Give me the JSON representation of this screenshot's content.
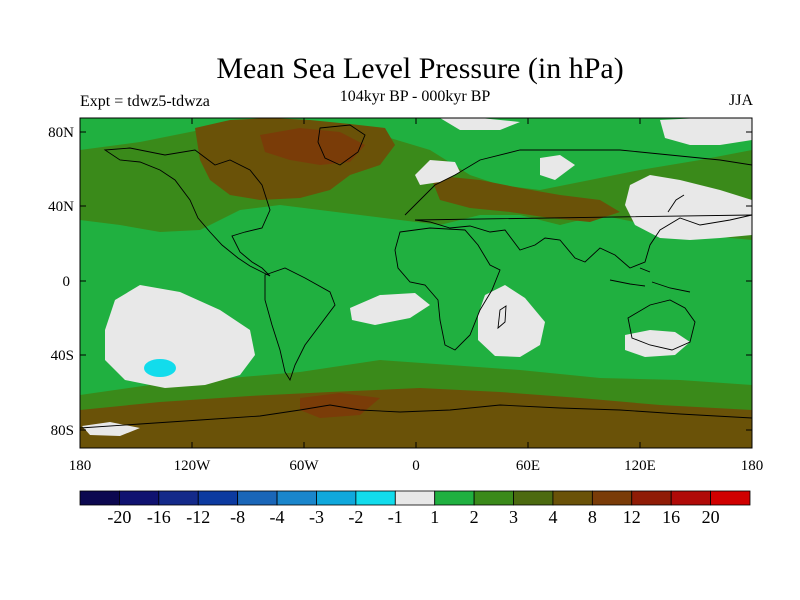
{
  "title": "Mean Sea Level Pressure (in hPa)",
  "subtitle": "104kyr BP - 000kyr BP",
  "experiment": "Expt = tdwz5-tdwza",
  "season": "JJA",
  "lat_ticks": [
    "80N",
    "40N",
    "0",
    "40S",
    "80S"
  ],
  "lon_ticks": [
    "180",
    "120W",
    "60W",
    "0",
    "60E",
    "120E",
    "180"
  ],
  "colorbar": {
    "colors": [
      "#0c0850",
      "#101270",
      "#142a8a",
      "#0c3aa0",
      "#1a66b8",
      "#1a86cc",
      "#10a8dc",
      "#12dcec",
      "#e8e8e8",
      "#20b040",
      "#3a8a1a",
      "#4c6a10",
      "#6a5208",
      "#7a3c08",
      "#901c06",
      "#b00a08",
      "#d00000"
    ],
    "labels": [
      "-20",
      "-16",
      "-12",
      "-8",
      "-4",
      "-3",
      "-2",
      "-1",
      "1",
      "2",
      "3",
      "4",
      "8",
      "12",
      "16",
      "20"
    ]
  },
  "palette": {
    "green": "#20b040",
    "olive": "#3a8a1a",
    "darkolive": "#4c6a10",
    "brown": "#6a5208",
    "darkbrown": "#7a3c08",
    "grey": "#e8e8e8",
    "cyan": "#12dcec"
  }
}
